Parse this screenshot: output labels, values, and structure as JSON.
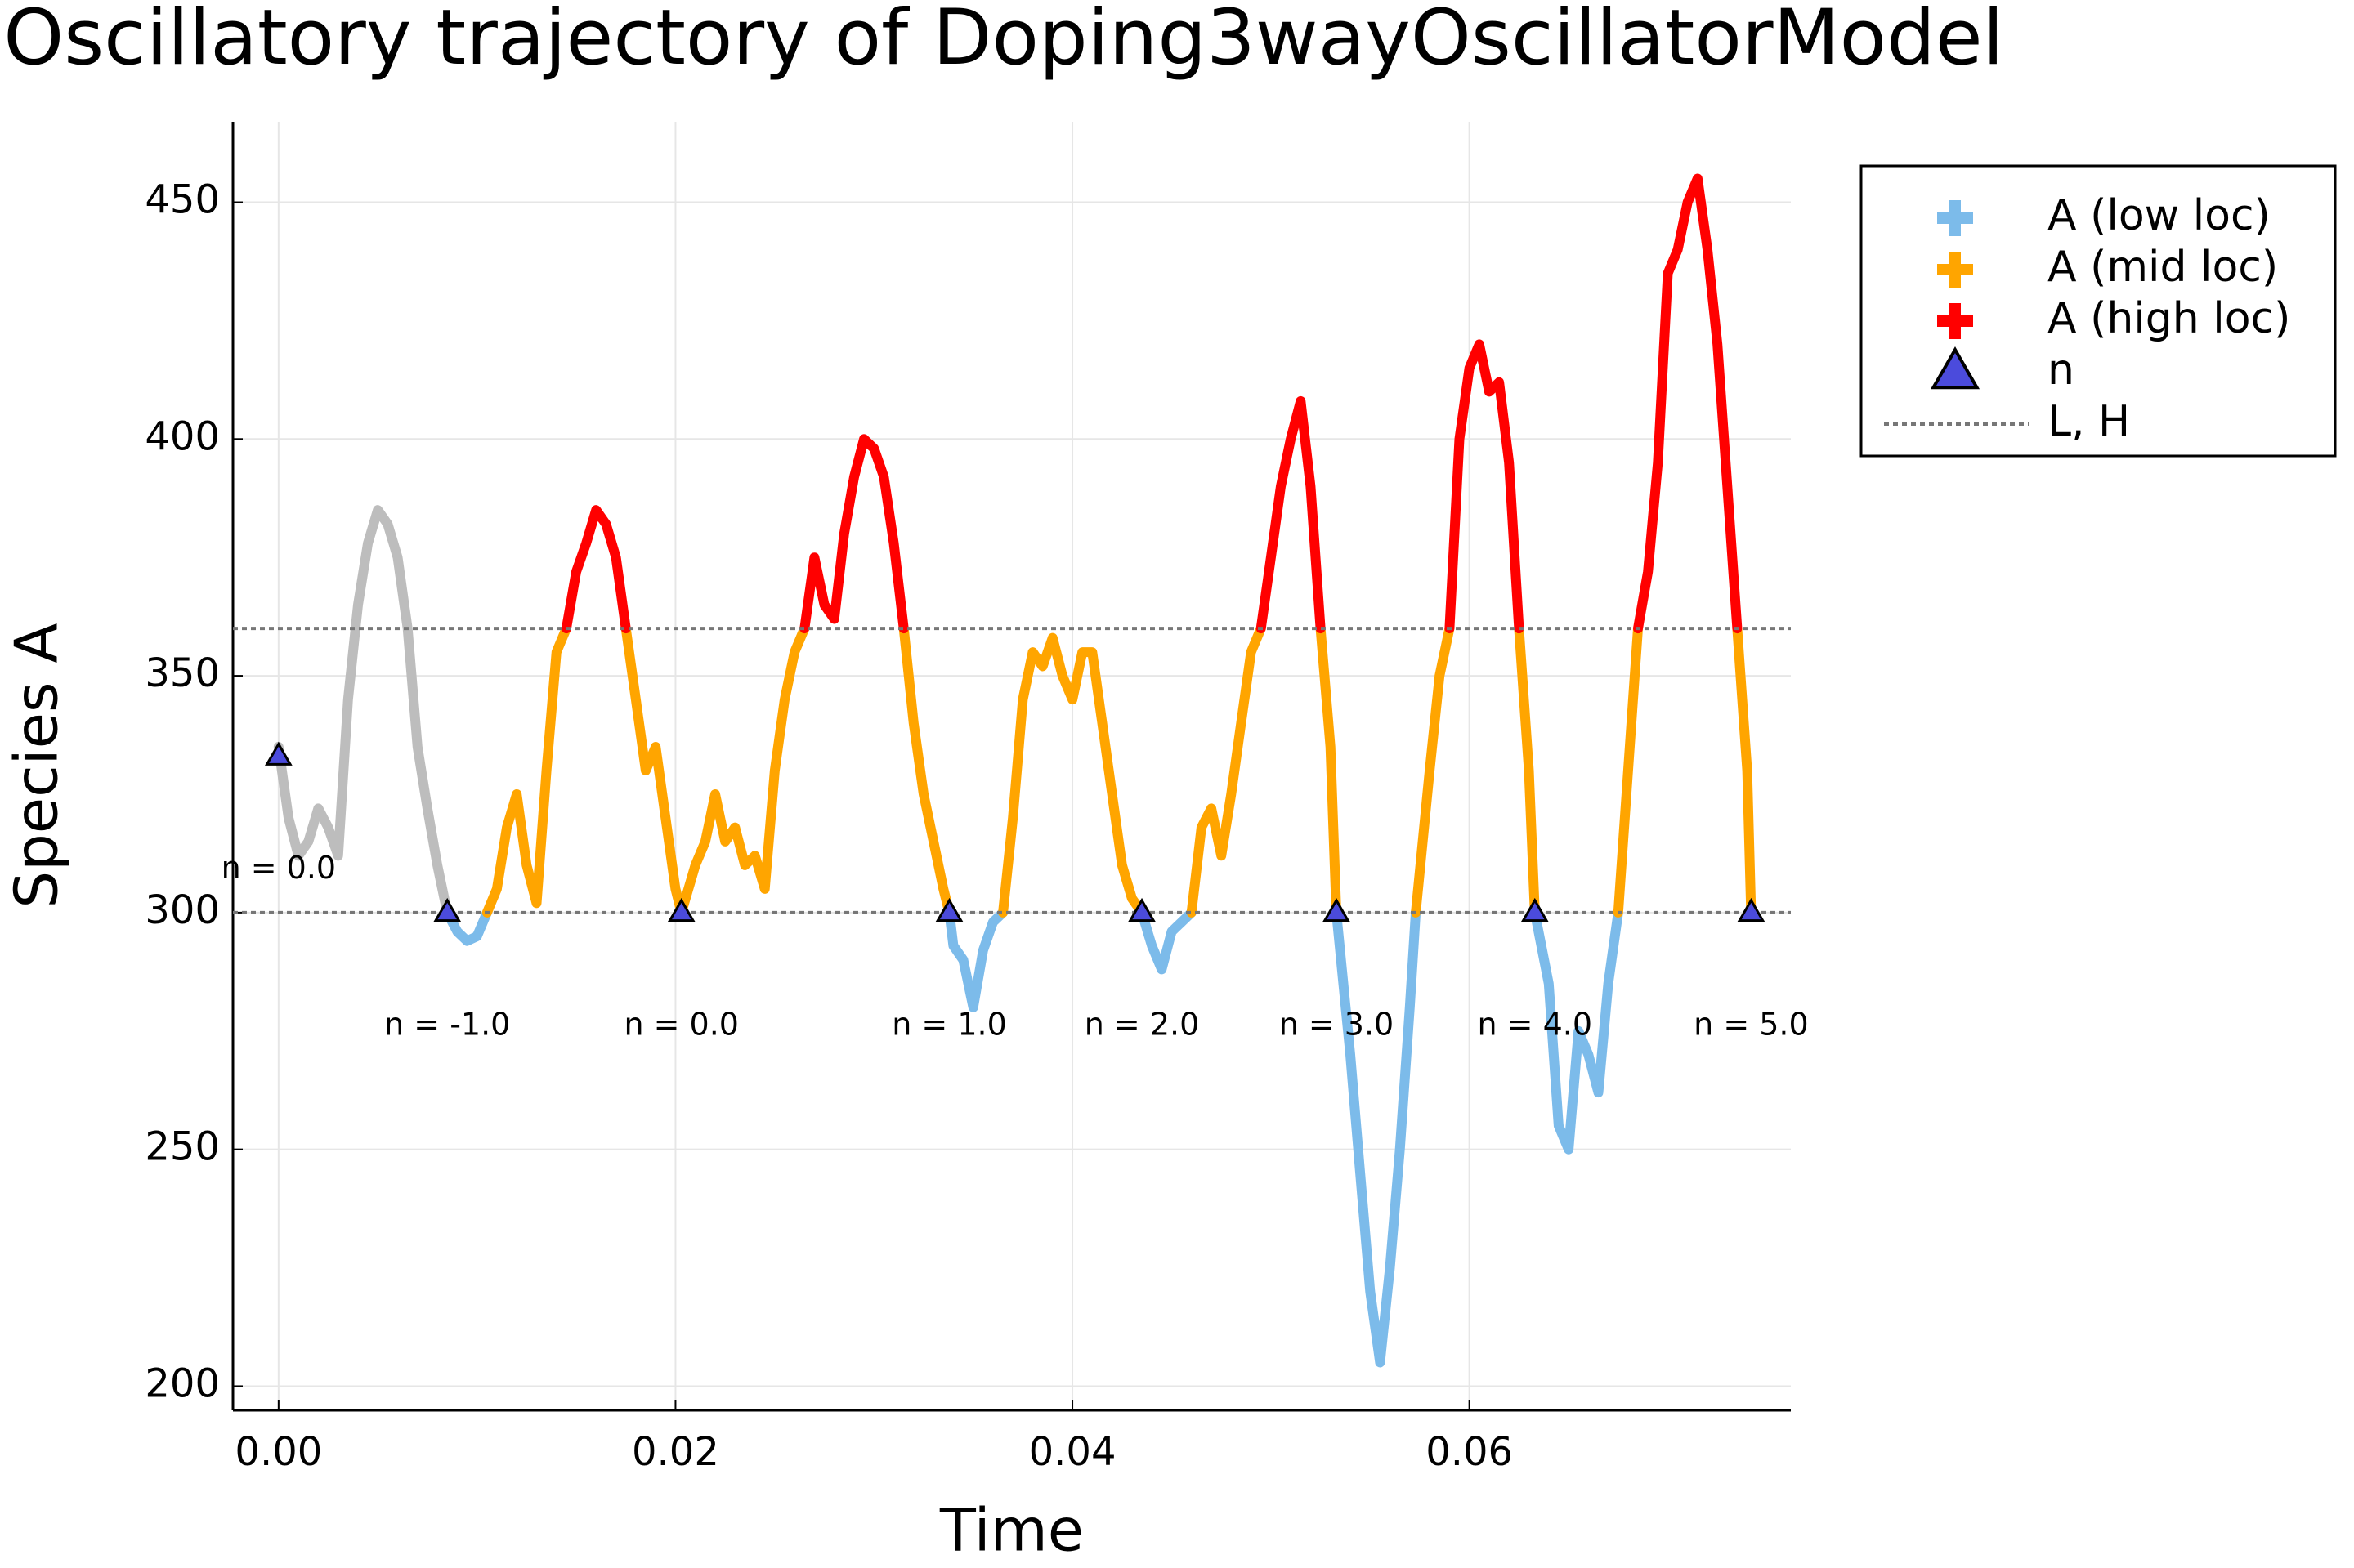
{
  "chart_data": {
    "type": "line",
    "title": "Oscillatory trajectory of Doping3wayOscillatorModel",
    "xlabel": "Time",
    "ylabel": "Species A",
    "xlim": [
      -0.0023,
      0.0762
    ],
    "ylim": [
      194.9,
      467
    ],
    "xticks": [
      {
        "value": 0,
        "label": "0.00"
      },
      0.02,
      0.04,
      0.06
    ],
    "yticks": [
      200,
      250,
      300,
      350,
      400,
      450
    ],
    "grid": true,
    "legend": "outer-top-right",
    "series": [
      {
        "color": "#bdbdbd",
        "x": [
          0,
          0.0005,
          0.001,
          0.0015,
          0.002,
          0.0025,
          0.003,
          0.0035,
          0.004,
          0.0045,
          0.005,
          0.0055,
          0.006,
          0.0065,
          0.007,
          0.0075,
          0.008,
          0.0085
        ],
        "values": [
          335,
          320,
          312,
          315,
          322,
          318,
          312,
          345,
          365,
          378,
          385,
          382,
          375,
          360,
          335,
          322,
          310,
          300
        ]
      },
      {
        "name": "A (low loc)",
        "color": "#7cbbea",
        "x": [
          0.0085,
          0.009,
          0.0095,
          0.01,
          0.0105,
          null,
          0.0338,
          0.034,
          0.0345,
          0.035,
          0.0355,
          0.036,
          0.0365,
          null,
          0.0435,
          0.044,
          0.0445,
          0.045,
          0.0455,
          0.046,
          null,
          0.0533,
          0.054,
          0.0545,
          0.055,
          0.0555,
          0.056,
          0.0565,
          0.057,
          0.0573,
          null,
          0.0633,
          0.064,
          0.0645,
          0.065,
          0.0655,
          0.066,
          0.0665,
          0.067,
          0.0675
        ],
        "values": [
          300,
          296,
          294,
          295,
          300,
          null,
          300,
          293,
          290,
          280,
          292,
          298,
          300,
          null,
          300,
          293,
          288,
          296,
          298,
          300,
          null,
          300,
          270,
          245,
          220,
          205,
          225,
          250,
          280,
          300,
          null,
          300,
          285,
          255,
          250,
          275,
          270,
          262,
          285,
          300
        ]
      },
      {
        "name": "A (mid loc)",
        "color": "#ffa500",
        "x": [
          0.0105,
          0.011,
          0.0115,
          0.012,
          0.0125,
          0.013,
          0.0135,
          0.014,
          0.0145,
          null,
          0.0175,
          0.018,
          0.0185,
          0.019,
          0.0195,
          0.02,
          0.0203,
          0.021,
          0.0215,
          0.022,
          0.0225,
          0.023,
          0.0235,
          0.024,
          0.0245,
          0.025,
          0.0255,
          0.026,
          0.0265,
          null,
          0.0315,
          0.032,
          0.0325,
          0.033,
          0.0335,
          0.0338,
          null,
          0.0365,
          0.037,
          0.0375,
          0.038,
          0.0385,
          0.039,
          0.0395,
          0.04,
          0.0405,
          0.041,
          0.0415,
          0.042,
          0.0425,
          0.043,
          0.0435,
          null,
          0.046,
          0.0465,
          0.047,
          0.0475,
          0.048,
          0.0485,
          0.049,
          0.0495,
          null,
          0.0525,
          0.053,
          0.0533,
          null,
          0.0573,
          0.058,
          0.0585,
          0.059,
          null,
          0.0625,
          0.063,
          0.0633,
          null,
          0.0675,
          0.068,
          0.0685,
          null,
          0.0735,
          0.074,
          0.0742
        ],
        "values": [
          300,
          305,
          318,
          325,
          310,
          302,
          330,
          355,
          360,
          null,
          360,
          345,
          330,
          335,
          320,
          305,
          300,
          310,
          315,
          325,
          315,
          318,
          310,
          312,
          305,
          330,
          345,
          355,
          360,
          null,
          360,
          340,
          325,
          315,
          305,
          300,
          null,
          300,
          320,
          345,
          355,
          352,
          358,
          350,
          345,
          355,
          355,
          340,
          325,
          310,
          303,
          300,
          null,
          300,
          318,
          322,
          312,
          325,
          340,
          355,
          360,
          null,
          360,
          335,
          300,
          null,
          300,
          330,
          350,
          360,
          null,
          360,
          330,
          300,
          null,
          300,
          330,
          360,
          null,
          360,
          330,
          300
        ]
      },
      {
        "name": "A (high loc)",
        "color": "#ff0000",
        "x": [
          0.0145,
          0.015,
          0.0155,
          0.016,
          0.0165,
          0.017,
          0.0175,
          null,
          0.0265,
          0.027,
          0.0275,
          0.028,
          0.0285,
          0.029,
          0.0295,
          0.03,
          0.0305,
          0.031,
          0.0315,
          null,
          0.0495,
          0.05,
          0.0505,
          0.051,
          0.0515,
          0.052,
          0.0525,
          null,
          0.059,
          0.0595,
          0.06,
          0.0605,
          0.061,
          0.0615,
          0.062,
          0.0625,
          null,
          0.0685,
          0.069,
          0.0695,
          0.07,
          0.0705,
          0.071,
          0.0715,
          0.072,
          0.0725,
          0.073,
          0.0735
        ],
        "values": [
          360,
          372,
          378,
          385,
          382,
          375,
          360,
          null,
          360,
          375,
          365,
          362,
          380,
          392,
          400,
          398,
          392,
          378,
          360,
          null,
          360,
          375,
          390,
          400,
          408,
          390,
          360,
          null,
          360,
          400,
          415,
          420,
          410,
          412,
          395,
          360,
          null,
          360,
          372,
          395,
          435,
          440,
          450,
          455,
          440,
          420,
          390,
          360
        ]
      }
    ],
    "markers": {
      "name": "n",
      "color": "#4b4bdc",
      "x": [
        0,
        0.0085,
        0.0203,
        0.0338,
        0.0435,
        0.0533,
        0.0633,
        0.0742
      ],
      "values": [
        333,
        300,
        300,
        300,
        300,
        300,
        300,
        300
      ]
    },
    "annotations": [
      {
        "text": "n = 0.0",
        "x": 0,
        "y": 309
      },
      {
        "text": "n = -1.0",
        "x": 0.0085,
        "y": 276
      },
      {
        "text": "n = 0.0",
        "x": 0.0203,
        "y": 276
      },
      {
        "text": "n = 1.0",
        "x": 0.0338,
        "y": 276
      },
      {
        "text": "n = 2.0",
        "x": 0.0435,
        "y": 276
      },
      {
        "text": "n = 3.0",
        "x": 0.0533,
        "y": 276
      },
      {
        "text": "n = 4.0",
        "x": 0.0633,
        "y": 276
      },
      {
        "text": "n = 5.0",
        "x": 0.0742,
        "y": 276
      }
    ],
    "hlines": {
      "name": "L, H",
      "color": "#777777",
      "values": [
        300,
        360
      ]
    }
  }
}
